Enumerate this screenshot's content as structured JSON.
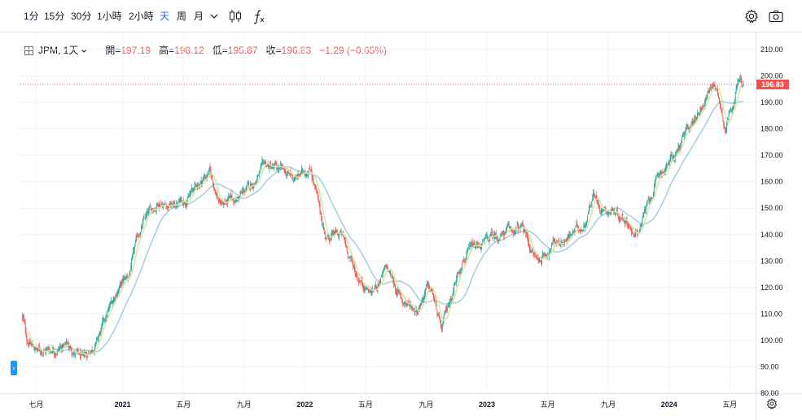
{
  "toolbar": {
    "intervals": [
      {
        "label": "1分",
        "active": false
      },
      {
        "label": "15分",
        "active": false
      },
      {
        "label": "30分",
        "active": false
      },
      {
        "label": "1小時",
        "active": false
      },
      {
        "label": "2小時",
        "active": false
      },
      {
        "label": "天",
        "active": true
      },
      {
        "label": "周",
        "active": false
      },
      {
        "label": "月",
        "active": false
      }
    ],
    "more_icon": "chevron-down-icon",
    "chart_type_icon": "candlestick-icon",
    "indicators_icon": "function-icon",
    "settings_icon": "gear-icon",
    "snapshot_icon": "camera-icon"
  },
  "legend": {
    "symbol": "JPM, 1天",
    "open_key": "開=",
    "open": "197.19",
    "high_key": "高=",
    "high": "198.12",
    "low_key": "低=",
    "low": "195.87",
    "close_key": "收=",
    "close": "196.83",
    "change": "−1.29 (−0.65%)"
  },
  "colors": {
    "up": "#26a69a",
    "down": "#ef5350",
    "ma_fast": "#d8e6a6",
    "ma_slow": "#a9cfe1",
    "last_price": "#ef5350",
    "grid": "#f0f3fa"
  },
  "chart_data": {
    "type": "candlestick",
    "symbol": "JPM",
    "interval": "1天",
    "ylim": [
      80,
      214
    ],
    "y_ticks": [
      "210.00",
      "200.00",
      "190.00",
      "180.00",
      "170.00",
      "160.00",
      "150.00",
      "140.00",
      "130.00",
      "120.00",
      "110.00",
      "100.00",
      "90.00",
      "80.00"
    ],
    "x_ticks": [
      {
        "label": "七月",
        "t": 0.9
      },
      {
        "label": "2021",
        "t": 6.6
      },
      {
        "label": "五月",
        "t": 10.6
      },
      {
        "label": "九月",
        "t": 14.6
      },
      {
        "label": "2022",
        "t": 18.6
      },
      {
        "label": "五月",
        "t": 22.6
      },
      {
        "label": "九月",
        "t": 26.6
      },
      {
        "label": "2023",
        "t": 30.6
      },
      {
        "label": "五月",
        "t": 34.6
      },
      {
        "label": "九月",
        "t": 38.6
      },
      {
        "label": "2024",
        "t": 42.6
      },
      {
        "label": "五月",
        "t": 46.6
      }
    ],
    "t_range": [
      -0.3,
      48.3
    ],
    "path_t": [
      0,
      0.3,
      1,
      2,
      3,
      4,
      5,
      6.3,
      7,
      7.6,
      8,
      9,
      10,
      11,
      12.3,
      13,
      14,
      15,
      16,
      17,
      18,
      19,
      19.6,
      20,
      21,
      22,
      23,
      24,
      25,
      26,
      26.6,
      27,
      27.6,
      28,
      29,
      30,
      31,
      32,
      33,
      33.6,
      34,
      35,
      36,
      37,
      37.6,
      38,
      39,
      40,
      40.3,
      41,
      42,
      43,
      44,
      45,
      45.6,
      46,
      46.3,
      46.8,
      47.2,
      47.5
    ],
    "path_close": [
      109,
      100,
      96,
      97,
      98,
      92,
      101,
      120,
      124,
      139,
      145,
      153,
      151,
      155,
      164,
      152,
      153,
      158,
      166,
      164,
      161,
      166,
      148,
      139,
      140,
      125,
      118,
      127,
      115,
      112,
      120,
      118,
      103,
      112,
      132,
      135,
      139,
      141,
      142,
      133,
      130,
      137,
      139,
      144,
      156,
      151,
      149,
      145,
      138,
      148,
      163,
      170,
      181,
      192,
      198,
      189,
      181,
      191,
      198,
      197
    ],
    "last_price": "196.83",
    "moving_averages": [
      {
        "window": 10
      },
      {
        "window": 40
      }
    ]
  }
}
